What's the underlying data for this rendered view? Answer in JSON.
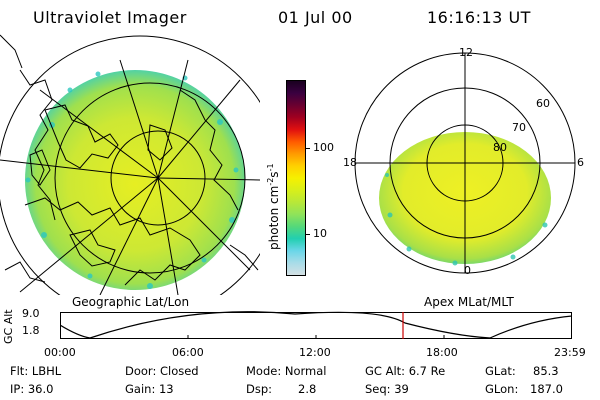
{
  "header": {
    "instrument": "Ultraviolet Imager",
    "date": "01 Jul 00",
    "time": "16:16:13 UT"
  },
  "geo_panel": {
    "caption": "Geographic Lat/Lon"
  },
  "polar_panel": {
    "caption": "Apex MLat/MLT",
    "mlt_labels": {
      "top": "12",
      "right": "6",
      "bottom": "0",
      "left": "18"
    },
    "lat_labels": [
      "60",
      "70",
      "80"
    ]
  },
  "colorbar": {
    "unit_main": "photon cm",
    "unit_exp1": "-2",
    "unit_s": "s",
    "unit_exp2": "-1",
    "ticks": [
      "100",
      "10"
    ],
    "colors": [
      "#1a0020",
      "#3a0040",
      "#6a0030",
      "#a00020",
      "#e01010",
      "#ff5a00",
      "#ff9a00",
      "#ffd000",
      "#f6f000",
      "#d8ef1a",
      "#b8e838",
      "#8fe35a",
      "#55d87a",
      "#22cfb0",
      "#6ad6e8",
      "#a8dce8",
      "#d4e0e4"
    ]
  },
  "orbit": {
    "y_label": "GC Alt",
    "y_ticks": [
      "9.0",
      "1.8"
    ],
    "x_ticks": [
      "00:00",
      "06:00",
      "12:00",
      "18:00",
      "23:59"
    ],
    "current_time_marker_color": "#cc0000"
  },
  "footer": {
    "row1": {
      "flt": "Flt: LBHL",
      "door": "Door: Closed",
      "mode": "Mode: Normal",
      "gcalt": "GC Alt: 6.7 Re",
      "glat_label": "GLat:",
      "glat_value": "85.3"
    },
    "row2": {
      "ip": "IP: 36.0",
      "gain": "Gain: 13",
      "dsp_label": "Dsp:",
      "dsp_value": "2.8",
      "seq": "Seq: 39",
      "glon_label": "GLon:",
      "glon_value": "187.0"
    }
  },
  "colors": {
    "emission_core": "#e0ec28",
    "emission_mid": "#b8e23a",
    "emission_edge": "#5fd3a0",
    "lines": "#000000",
    "background": "#ffffff"
  }
}
